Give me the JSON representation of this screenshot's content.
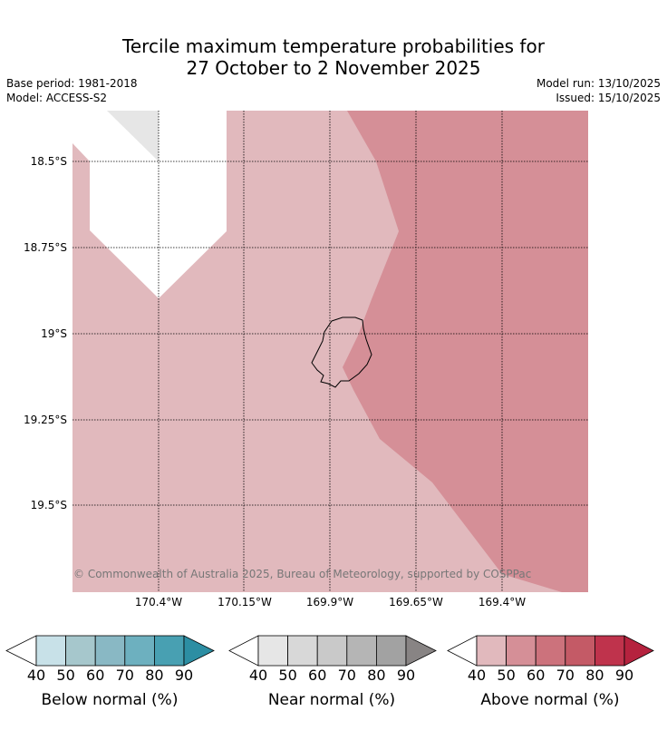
{
  "title": {
    "line1": "Tercile maximum temperature probabilities for",
    "line2": "27 October to 2 November 2025"
  },
  "meta": {
    "base_period": "Base period: 1981-2018",
    "model": "Model: ACCESS-S2",
    "model_run": "Model run: 13/10/2025",
    "issued": "Issued: 15/10/2025"
  },
  "map": {
    "latitudes": [
      "18.5°S",
      "18.75°S",
      "19°S",
      "19.25°S",
      "19.5°S"
    ],
    "longitudes": [
      "170.4°W",
      "170.15°W",
      "169.9°W",
      "169.65°W",
      "169.4°W"
    ],
    "region_colors": {
      "above_40_50": "#e1b9bd",
      "above_50_60": "#d58f97",
      "near_40_50": "#e6e6e6",
      "no_signal": "#ffffff"
    },
    "copyright": "© Commonwealth of Australia 2025, Bureau of Meteorology, supported by COSPPac"
  },
  "legends": [
    {
      "name": "below",
      "title": "Below normal (%)",
      "ticks": [
        "40",
        "50",
        "60",
        "70",
        "80",
        "90"
      ],
      "colors": [
        "#c8e1e8",
        "#a6c7cc",
        "#89b8c4",
        "#6db0bf",
        "#48a0b2",
        "#2c8ea3"
      ]
    },
    {
      "name": "near",
      "title": "Near normal (%)",
      "ticks": [
        "40",
        "50",
        "60",
        "70",
        "80",
        "90"
      ],
      "colors": [
        "#e6e6e6",
        "#d8d8d8",
        "#c9c9c9",
        "#b5b5b5",
        "#a2a2a2",
        "#888484"
      ]
    },
    {
      "name": "above",
      "title": "Above normal (%)",
      "ticks": [
        "40",
        "50",
        "60",
        "70",
        "80",
        "90"
      ],
      "colors": [
        "#e1b9bd",
        "#d58f97",
        "#cc727c",
        "#c45a66",
        "#bf334c",
        "#b5223e"
      ]
    }
  ]
}
